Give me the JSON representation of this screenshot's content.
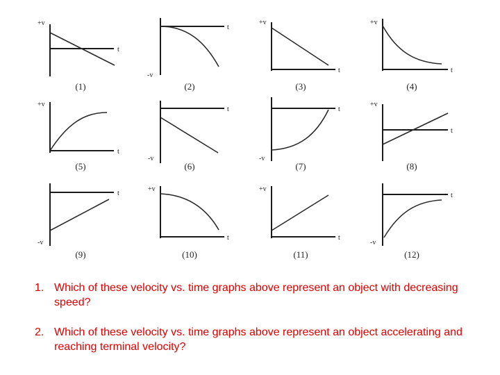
{
  "graphs": [
    {
      "number": "(1)",
      "velocity_label": "+v",
      "time_label": "t",
      "shape": "linear-decreasing-crossing-zero"
    },
    {
      "number": "(2)",
      "velocity_label": "-v",
      "time_label": "t",
      "shape": "curve-decreasing-negative"
    },
    {
      "number": "(3)",
      "velocity_label": "+v",
      "time_label": "t",
      "shape": "linear-decreasing-to-zero"
    },
    {
      "number": "(4)",
      "velocity_label": "+v",
      "time_label": "t",
      "shape": "exponential-decay-to-zero"
    },
    {
      "number": "(5)",
      "velocity_label": "+v",
      "time_label": "t",
      "shape": "curve-increasing-leveling"
    },
    {
      "number": "(6)",
      "velocity_label": "-v",
      "time_label": "t",
      "shape": "linear-decreasing-negative"
    },
    {
      "number": "(7)",
      "velocity_label": "-v",
      "time_label": "t",
      "shape": "curve-increasing-to-zero-negative"
    },
    {
      "number": "(8)",
      "velocity_label": "+v",
      "time_label": "t",
      "shape": "linear-increasing-crossing-zero"
    },
    {
      "number": "(9)",
      "velocity_label": "-v",
      "time_label": "t",
      "shape": "linear-increasing-negative"
    },
    {
      "number": "(10)",
      "velocity_label": "+v",
      "time_label": "t",
      "shape": "curve-decreasing-to-zero"
    },
    {
      "number": "(11)",
      "velocity_label": "+v",
      "time_label": "t",
      "shape": "linear-increasing-positive"
    },
    {
      "number": "(12)",
      "velocity_label": "-v",
      "time_label": "t",
      "shape": "curve-approaching-zero-from-negative"
    }
  ],
  "questions": [
    {
      "number": "1.",
      "text": "Which of these velocity vs. time graphs above represent an object with decreasing speed?"
    },
    {
      "number": "2.",
      "text": "Which of these velocity vs. time graphs above represent an object accelerating and reaching terminal velocity?"
    }
  ],
  "colors": {
    "question_text": "#e00000",
    "graph_ink": "#1a1a1a"
  }
}
